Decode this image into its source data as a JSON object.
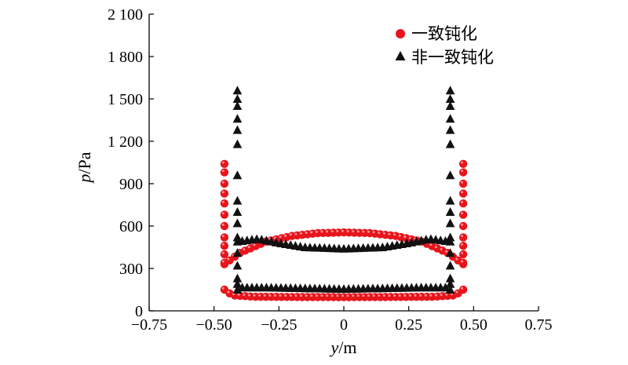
{
  "chart_data": {
    "type": "scatter",
    "xlabel": {
      "var": "y",
      "unit": "/m"
    },
    "ylabel": {
      "var": "p",
      "unit": "/Pa"
    },
    "xlim": [
      -0.75,
      0.75
    ],
    "ylim": [
      0,
      2100
    ],
    "xticks": [
      -0.75,
      -0.5,
      -0.25,
      0,
      0.25,
      0.5,
      0.75
    ],
    "xtick_labels": [
      "−0.75",
      "−0.50",
      "−0.25",
      "0",
      "0.25",
      "0.50",
      "0.75"
    ],
    "yticks": [
      0,
      300,
      600,
      900,
      1200,
      1500,
      1800,
      2100
    ],
    "ytick_labels": [
      "0",
      "300",
      "600",
      "900",
      "1 200",
      "1 500",
      "1 800",
      "2 100"
    ],
    "legend_position": "top-right",
    "series": [
      {
        "name": "一致钝化",
        "marker": "circle",
        "color": "#e8141c",
        "loops": [
          {
            "x_min": -0.46,
            "x_max": 0.46,
            "top": [
              [
                -0.46,
                330
              ],
              [
                -0.4,
                410
              ],
              [
                -0.3,
                490
              ],
              [
                -0.2,
                530
              ],
              [
                -0.1,
                550
              ],
              [
                0,
                555
              ],
              [
                0.1,
                550
              ],
              [
                0.2,
                530
              ],
              [
                0.3,
                490
              ],
              [
                0.4,
                410
              ],
              [
                0.46,
                330
              ]
            ],
            "bottom": [
              [
                -0.46,
                150
              ],
              [
                -0.43,
                110
              ],
              [
                -0.35,
                100
              ],
              [
                -0.2,
                98
              ],
              [
                0,
                97
              ],
              [
                0.2,
                98
              ],
              [
                0.35,
                100
              ],
              [
                0.43,
                110
              ],
              [
                0.46,
                150
              ]
            ]
          }
        ],
        "spikes": [
          {
            "x": -0.46,
            "values": [
              340,
              400,
              460,
              520,
              600,
              680,
              760,
              830,
              900,
              980,
              1040
            ]
          },
          {
            "x": 0.46,
            "values": [
              340,
              400,
              460,
              520,
              600,
              680,
              760,
              830,
              900,
              980,
              1040
            ]
          }
        ]
      },
      {
        "name": "非一致钝化",
        "marker": "triangle",
        "color": "#111111",
        "curves": [
          [
            [
              -0.41,
              490
            ],
            [
              -0.33,
              510
            ],
            [
              -0.25,
              480
            ],
            [
              -0.15,
              450
            ],
            [
              0,
              440
            ],
            [
              0.15,
              450
            ],
            [
              0.25,
              480
            ],
            [
              0.33,
              510
            ],
            [
              0.41,
              490
            ]
          ],
          [
            [
              -0.41,
              190
            ],
            [
              -0.4,
              165
            ],
            [
              -0.3,
              165
            ],
            [
              -0.15,
              160
            ],
            [
              0,
              155
            ],
            [
              0.15,
              160
            ],
            [
              0.3,
              165
            ],
            [
              0.4,
              165
            ],
            [
              0.41,
              190
            ]
          ]
        ],
        "spikes": [
          {
            "x": -0.41,
            "values": [
              150,
              230,
              320,
              410,
              520,
              620,
              700,
              780,
              960,
              1180,
              1280,
              1360,
              1450,
              1500,
              1560
            ]
          },
          {
            "x": 0.41,
            "values": [
              150,
              230,
              320,
              410,
              520,
              620,
              700,
              780,
              960,
              1180,
              1280,
              1360,
              1450,
              1500,
              1560
            ]
          }
        ]
      }
    ]
  }
}
